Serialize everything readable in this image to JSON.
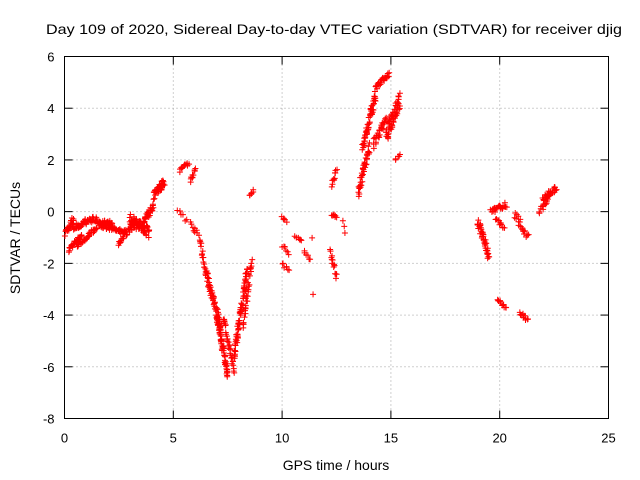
{
  "chart_data": {
    "type": "scatter",
    "title": "Day 109 of 2020, Sidereal Day-to-day VTEC variation (SDTVAR) for receiver djig",
    "xlabel": "GPS time / hours",
    "ylabel": "SDTVAR / TECUs",
    "xlim": [
      0,
      25
    ],
    "ylim": [
      -8,
      6
    ],
    "xticks": [
      0,
      5,
      10,
      15,
      20,
      25
    ],
    "yticks": [
      -8,
      -6,
      -4,
      -2,
      0,
      2,
      4,
      6
    ],
    "grid": true,
    "marker": "+",
    "color": "#ff0000",
    "segments": [
      {
        "x0": 0.05,
        "x1": 0.4,
        "y0": -0.9,
        "y1": -0.3,
        "spread": 0.25,
        "n": 25
      },
      {
        "x0": 0.2,
        "x1": 0.8,
        "y0": -1.5,
        "y1": -0.9,
        "spread": 0.15,
        "n": 30
      },
      {
        "x0": 0.4,
        "x1": 1.3,
        "y0": -0.6,
        "y1": -0.3,
        "spread": 0.25,
        "n": 40
      },
      {
        "x0": 0.6,
        "x1": 1.5,
        "y0": -1.3,
        "y1": -0.6,
        "spread": 0.15,
        "n": 35
      },
      {
        "x0": 1.3,
        "x1": 2.2,
        "y0": -0.3,
        "y1": -0.5,
        "spread": 0.25,
        "n": 40
      },
      {
        "x0": 1.6,
        "x1": 2.8,
        "y0": -0.5,
        "y1": -0.8,
        "spread": 0.2,
        "n": 45
      },
      {
        "x0": 2.5,
        "x1": 3.3,
        "y0": -1.2,
        "y1": -0.4,
        "spread": 0.25,
        "n": 30
      },
      {
        "x0": 3.0,
        "x1": 3.9,
        "y0": -0.3,
        "y1": -0.8,
        "spread": 0.45,
        "n": 60
      },
      {
        "x0": 3.6,
        "x1": 4.1,
        "y0": -0.4,
        "y1": 0.2,
        "spread": 0.3,
        "n": 30
      },
      {
        "x0": 4.1,
        "x1": 4.6,
        "y0": 0.6,
        "y1": 1.2,
        "spread": 0.35,
        "n": 40
      },
      {
        "x0": 5.3,
        "x1": 5.7,
        "y0": 1.6,
        "y1": 1.9,
        "spread": 0.15,
        "n": 12
      },
      {
        "x0": 5.8,
        "x1": 6.0,
        "y0": 1.2,
        "y1": 1.6,
        "spread": 0.2,
        "n": 10
      },
      {
        "x0": 5.2,
        "x1": 5.6,
        "y0": 0.1,
        "y1": -0.4,
        "spread": 0.2,
        "n": 6
      },
      {
        "x0": 5.8,
        "x1": 6.1,
        "y0": -0.4,
        "y1": -0.9,
        "spread": 0.25,
        "n": 8
      },
      {
        "x0": 6.2,
        "x1": 6.5,
        "y0": -1.0,
        "y1": -2.4,
        "spread": 0.3,
        "n": 18
      },
      {
        "x0": 6.5,
        "x1": 7.2,
        "y0": -2.4,
        "y1": -4.5,
        "spread": 0.4,
        "n": 60
      },
      {
        "x0": 7.0,
        "x1": 7.5,
        "y0": -4.0,
        "y1": -6.3,
        "spread": 0.35,
        "n": 60
      },
      {
        "x0": 7.3,
        "x1": 7.8,
        "y0": -4.1,
        "y1": -6.2,
        "spread": 0.3,
        "n": 30
      },
      {
        "x0": 7.8,
        "x1": 8.4,
        "y0": -5.5,
        "y1": -2.3,
        "spread": 0.45,
        "n": 70
      },
      {
        "x0": 8.2,
        "x1": 8.6,
        "y0": -4.4,
        "y1": -1.9,
        "spread": 0.4,
        "n": 30
      },
      {
        "x0": 8.5,
        "x1": 8.7,
        "y0": 0.6,
        "y1": 0.8,
        "spread": 0.1,
        "n": 6
      },
      {
        "x0": 10.0,
        "x1": 10.2,
        "y0": -0.2,
        "y1": -0.4,
        "spread": 0.1,
        "n": 5
      },
      {
        "x0": 10.0,
        "x1": 10.3,
        "y0": -1.3,
        "y1": -1.6,
        "spread": 0.15,
        "n": 6
      },
      {
        "x0": 10.0,
        "x1": 10.3,
        "y0": -2.0,
        "y1": -2.3,
        "spread": 0.15,
        "n": 6
      },
      {
        "x0": 10.6,
        "x1": 10.9,
        "y0": -1.0,
        "y1": -1.1,
        "spread": 0.1,
        "n": 6
      },
      {
        "x0": 11.0,
        "x1": 11.3,
        "y0": -1.5,
        "y1": -1.9,
        "spread": 0.15,
        "n": 6
      },
      {
        "x0": 11.3,
        "x1": 11.4,
        "y0": -1.0,
        "y1": -1.0,
        "spread": 0.05,
        "n": 1
      },
      {
        "x0": 11.4,
        "x1": 11.4,
        "y0": -3.2,
        "y1": -3.2,
        "spread": 0.05,
        "n": 1
      },
      {
        "x0": 12.3,
        "x1": 12.5,
        "y0": -0.1,
        "y1": -0.2,
        "spread": 0.1,
        "n": 8
      },
      {
        "x0": 12.2,
        "x1": 12.5,
        "y0": -1.5,
        "y1": -2.5,
        "spread": 0.3,
        "n": 14
      },
      {
        "x0": 12.3,
        "x1": 12.5,
        "y0": 1.0,
        "y1": 1.6,
        "spread": 0.3,
        "n": 10
      },
      {
        "x0": 12.8,
        "x1": 12.9,
        "y0": -0.3,
        "y1": -0.8,
        "spread": 0.2,
        "n": 3
      },
      {
        "x0": 13.5,
        "x1": 14.0,
        "y0": 0.7,
        "y1": 2.5,
        "spread": 0.4,
        "n": 40
      },
      {
        "x0": 13.7,
        "x1": 14.3,
        "y0": 2.5,
        "y1": 4.5,
        "spread": 0.5,
        "n": 55
      },
      {
        "x0": 14.3,
        "x1": 14.9,
        "y0": 4.8,
        "y1": 5.3,
        "spread": 0.2,
        "n": 30
      },
      {
        "x0": 14.2,
        "x1": 14.8,
        "y0": 2.6,
        "y1": 3.6,
        "spread": 0.4,
        "n": 30
      },
      {
        "x0": 14.8,
        "x1": 15.4,
        "y0": 3.0,
        "y1": 4.3,
        "spread": 0.6,
        "n": 60
      },
      {
        "x0": 15.2,
        "x1": 15.4,
        "y0": 2.0,
        "y1": 2.2,
        "spread": 0.1,
        "n": 5
      },
      {
        "x0": 19.0,
        "x1": 19.5,
        "y0": -0.4,
        "y1": -1.7,
        "spread": 0.35,
        "n": 40
      },
      {
        "x0": 19.6,
        "x1": 20.3,
        "y0": 0.0,
        "y1": 0.3,
        "spread": 0.25,
        "n": 25
      },
      {
        "x0": 19.8,
        "x1": 20.2,
        "y0": -0.3,
        "y1": -0.6,
        "spread": 0.15,
        "n": 12
      },
      {
        "x0": 19.9,
        "x1": 20.3,
        "y0": -3.4,
        "y1": -3.7,
        "spread": 0.15,
        "n": 12
      },
      {
        "x0": 20.7,
        "x1": 21.3,
        "y0": -0.1,
        "y1": -1.0,
        "spread": 0.3,
        "n": 20
      },
      {
        "x0": 20.9,
        "x1": 21.3,
        "y0": -3.9,
        "y1": -4.2,
        "spread": 0.15,
        "n": 12
      },
      {
        "x0": 21.8,
        "x1": 22.2,
        "y0": 0.0,
        "y1": 0.4,
        "spread": 0.2,
        "n": 12
      },
      {
        "x0": 22.0,
        "x1": 22.6,
        "y0": 0.5,
        "y1": 0.9,
        "spread": 0.25,
        "n": 30
      }
    ]
  }
}
